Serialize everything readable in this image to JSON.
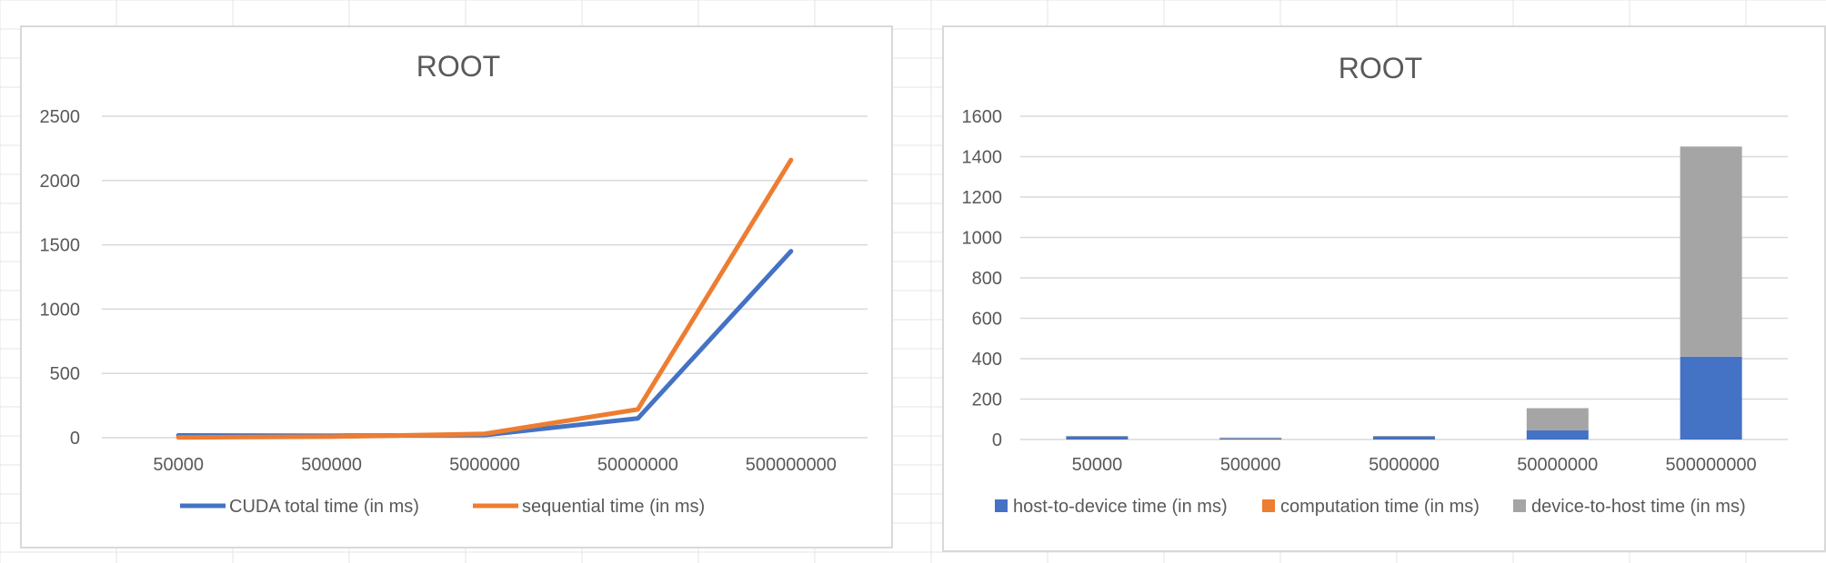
{
  "charts": [
    {
      "title": "ROOT",
      "legend": [
        "CUDA total time (in ms)",
        "sequential time (in ms)"
      ]
    },
    {
      "title": "ROOT",
      "legend": [
        "host-to-device time (in ms)",
        "computation time (in ms)",
        "device-to-host time (in ms)"
      ]
    }
  ],
  "colors": {
    "blue": "#4472c4",
    "orange": "#ed7d31",
    "gray": "#a5a5a5",
    "gridline": "#d9d9d9",
    "text": "#595959"
  },
  "chart_data": [
    {
      "type": "line",
      "title": "ROOT",
      "categories": [
        "50000",
        "500000",
        "5000000",
        "50000000",
        "500000000"
      ],
      "series": [
        {
          "name": "CUDA total time (in ms)",
          "color": "#4472c4",
          "values": [
            18,
            15,
            20,
            150,
            1450
          ]
        },
        {
          "name": "sequential time (in ms)",
          "color": "#ed7d31",
          "values": [
            2,
            8,
            30,
            220,
            2160
          ]
        }
      ],
      "ylim": [
        0,
        2500
      ],
      "yticks": [
        0,
        500,
        1000,
        1500,
        2000,
        2500
      ],
      "grid": true,
      "legend_position": "bottom"
    },
    {
      "type": "bar",
      "stacked": true,
      "title": "ROOT",
      "categories": [
        "50000",
        "500000",
        "5000000",
        "50000000",
        "500000000"
      ],
      "series": [
        {
          "name": "host-to-device time (in ms)",
          "color": "#4472c4",
          "values": [
            15,
            5,
            15,
            45,
            410
          ]
        },
        {
          "name": "computation time (in ms)",
          "color": "#ed7d31",
          "values": [
            0,
            0,
            0,
            0,
            0
          ]
        },
        {
          "name": "device-to-host time (in ms)",
          "color": "#a5a5a5",
          "values": [
            3,
            5,
            3,
            110,
            1040
          ]
        }
      ],
      "ylim": [
        0,
        1600
      ],
      "yticks": [
        0,
        200,
        400,
        600,
        800,
        1000,
        1200,
        1400,
        1600
      ],
      "grid": true,
      "legend_position": "bottom"
    }
  ]
}
